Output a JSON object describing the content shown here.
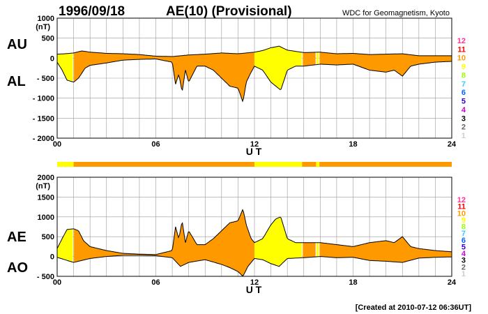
{
  "header": {
    "date": "1996/09/18",
    "title": "AE(10) (Provisional)",
    "source": "WDC for Geomagnetism, Kyoto"
  },
  "footer": {
    "created": "[Created at 2010-07-12 06:36UT]"
  },
  "colors": {
    "fill_default": "#FF9900",
    "fill_highlight": "#FFFF00",
    "grid": "#999999",
    "station_count_colors": {
      "12": "#FF3399",
      "11": "#FF0000",
      "10": "#FF9900",
      "9": "#FFFF00",
      "8": "#99FF00",
      "7": "#33CCFF",
      "6": "#0066FF",
      "5": "#3300CC",
      "4": "#CC00CC",
      "3": "#000000",
      "2": "#666666",
      "1": "#CCCCCC"
    }
  },
  "station_scale": [
    "12",
    "11",
    "10",
    "9",
    "8",
    "7",
    "6",
    "5",
    "4",
    "3",
    "2",
    "1"
  ],
  "coverage_bar": {
    "segments": [
      {
        "start": 0,
        "end": 1.0,
        "stations": 9
      },
      {
        "start": 1.0,
        "end": 12.0,
        "stations": 10
      },
      {
        "start": 12.0,
        "end": 14.9,
        "stations": 9
      },
      {
        "start": 14.9,
        "end": 15.75,
        "stations": 10
      },
      {
        "start": 15.75,
        "end": 15.95,
        "stations": 9
      },
      {
        "start": 15.95,
        "end": 24.0,
        "stations": 10
      }
    ]
  },
  "chart_data": [
    {
      "type": "area",
      "panel": "AU/AL",
      "labels_left": [
        "AU",
        "AL"
      ],
      "xlabel": "U T",
      "ylabel": "(nT)",
      "xlim": [
        0,
        24
      ],
      "ylim": [
        -2000,
        1000
      ],
      "xticks": [
        "00",
        "06",
        "12",
        "18",
        "24"
      ],
      "yticks": [
        "1000",
        "500",
        "0",
        "- 500",
        "- 1000",
        "- 1500",
        "- 2000"
      ],
      "grid": true,
      "series": [
        {
          "name": "AU",
          "x": [
            0,
            0.5,
            1,
            1.5,
            2,
            3,
            4,
            5,
            6,
            7,
            7.5,
            8,
            9,
            10,
            11,
            12,
            12.5,
            13,
            13.5,
            14,
            15,
            16,
            17,
            18,
            19,
            20,
            21,
            22,
            23,
            24
          ],
          "values": [
            100,
            110,
            130,
            180,
            150,
            120,
            110,
            90,
            50,
            40,
            60,
            80,
            100,
            130,
            110,
            150,
            190,
            260,
            300,
            200,
            140,
            150,
            110,
            120,
            90,
            100,
            110,
            60,
            60,
            60
          ]
        },
        {
          "name": "AL",
          "x": [
            0,
            0.3,
            0.6,
            1,
            1.3,
            1.7,
            2,
            3,
            4,
            5,
            6,
            7,
            7.2,
            7.4,
            7.6,
            7.8,
            8,
            8.5,
            9,
            9.5,
            10,
            10.5,
            11,
            11.3,
            11.5,
            11.8,
            12,
            12.5,
            13,
            13.3,
            13.6,
            14,
            14.5,
            15,
            16,
            17,
            18,
            19,
            20,
            20.5,
            21,
            21.5,
            22,
            23,
            24
          ],
          "values": [
            -100,
            -300,
            -550,
            -600,
            -500,
            -250,
            -180,
            -120,
            -50,
            -30,
            -20,
            -100,
            -650,
            -400,
            -850,
            -300,
            -600,
            -200,
            -200,
            -300,
            -500,
            -700,
            -750,
            -1100,
            -600,
            -350,
            -200,
            -300,
            -600,
            -700,
            -800,
            -300,
            -200,
            -200,
            -150,
            -170,
            -150,
            -300,
            -350,
            -300,
            -450,
            -200,
            -150,
            -100,
            -80
          ]
        }
      ]
    },
    {
      "type": "area",
      "panel": "AE/AO",
      "labels_left": [
        "AE",
        "AO"
      ],
      "xlabel": "U T",
      "ylabel": "(nT)",
      "xlim": [
        0,
        24
      ],
      "ylim": [
        -500,
        2000
      ],
      "xticks": [
        "00",
        "06",
        "12",
        "18",
        "24"
      ],
      "yticks": [
        "2000",
        "1500",
        "1000",
        "500",
        "0",
        "- 500"
      ],
      "grid": true,
      "series": [
        {
          "name": "AE",
          "x": [
            0,
            0.3,
            0.6,
            1,
            1.3,
            1.6,
            2,
            3,
            4,
            5,
            6,
            7,
            7.2,
            7.4,
            7.6,
            7.8,
            8,
            8.5,
            9,
            9.5,
            10,
            10.5,
            11,
            11.3,
            11.5,
            11.8,
            12,
            12.5,
            13,
            13.3,
            13.6,
            14,
            14.5,
            15,
            16,
            17,
            18,
            19,
            20,
            20.5,
            21,
            21.5,
            22,
            23,
            24
          ],
          "values": [
            200,
            450,
            680,
            700,
            650,
            400,
            250,
            150,
            80,
            60,
            50,
            150,
            750,
            450,
            900,
            350,
            650,
            300,
            300,
            450,
            650,
            850,
            900,
            1200,
            800,
            450,
            350,
            450,
            800,
            950,
            1000,
            450,
            350,
            350,
            350,
            300,
            250,
            350,
            400,
            350,
            500,
            250,
            200,
            150,
            120
          ]
        },
        {
          "name": "AO",
          "x": [
            0,
            1,
            2,
            3,
            4,
            5,
            6,
            7,
            7.5,
            8,
            9,
            10,
            10.5,
            11,
            11.3,
            11.6,
            12,
            12.5,
            13,
            13.5,
            14,
            15,
            16,
            17,
            18,
            19,
            20,
            21,
            22,
            23,
            24
          ],
          "values": [
            -20,
            -150,
            -50,
            0,
            30,
            30,
            20,
            -30,
            -250,
            -150,
            -80,
            -200,
            -280,
            -380,
            -500,
            -250,
            -50,
            -80,
            -180,
            -250,
            -50,
            -30,
            0,
            -30,
            -20,
            -100,
            -120,
            -150,
            -40,
            -20,
            -10
          ]
        }
      ]
    }
  ]
}
